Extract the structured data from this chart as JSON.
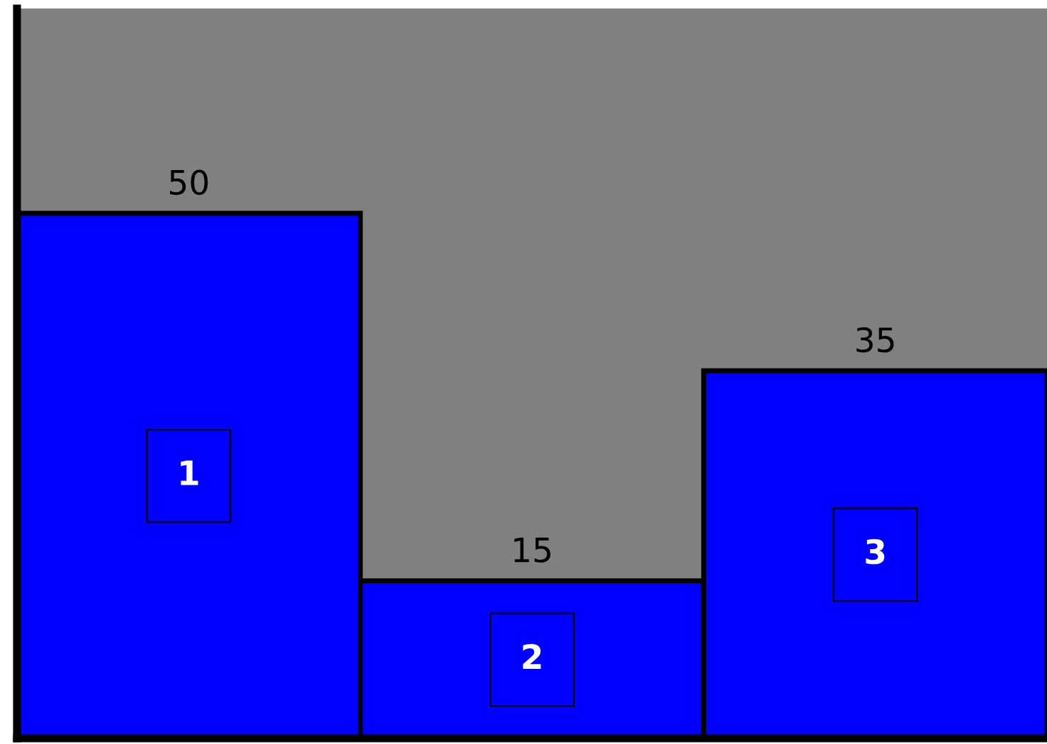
{
  "chart_data": {
    "type": "bar",
    "categories": [
      "1",
      "2",
      "3"
    ],
    "values": [
      50,
      15,
      35
    ],
    "color": "#0000ff",
    "data_labels": true
  }
}
